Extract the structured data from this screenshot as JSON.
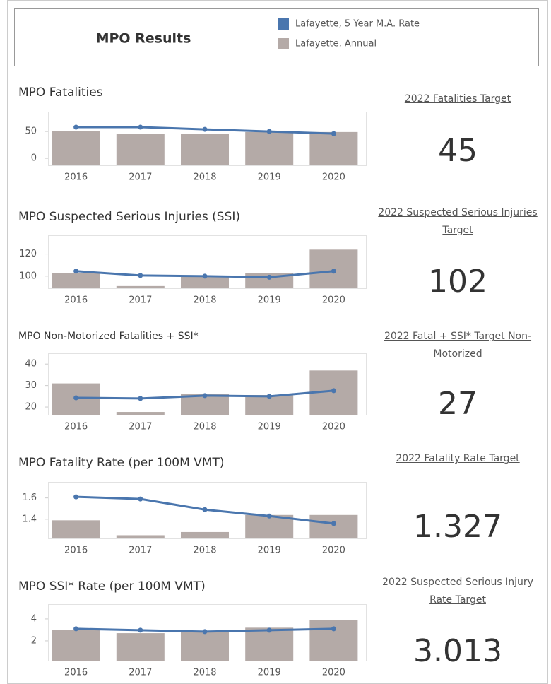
{
  "header": {
    "title": "MPO Results"
  },
  "legend": [
    {
      "name": "Lafayette, 5 Year M.A. Rate",
      "color": "#4a76ae"
    },
    {
      "name": "Lafayette, Annual",
      "color": "#b4aaa7"
    }
  ],
  "chart_data": [
    {
      "type": "combo",
      "title": "MPO Fatalities",
      "categories": [
        "2016",
        "2017",
        "2018",
        "2019",
        "2020"
      ],
      "series": [
        {
          "values": [
            51,
            45,
            46,
            49,
            49
          ]
        },
        {
          "values": [
            58,
            58,
            54,
            50,
            46
          ]
        }
      ],
      "ylim": [
        -13,
        87
      ],
      "yticks": [
        0,
        50
      ],
      "target_title": "2022 Fatalities Target",
      "target": 45
    },
    {
      "type": "combo",
      "title": "MPO Suspected Serious Injuries (SSI)",
      "categories": [
        "2016",
        "2017",
        "2018",
        "2019",
        "2020"
      ],
      "series": [
        {
          "values": [
            102.6,
            91,
            99.4,
            103,
            124
          ]
        },
        {
          "values": [
            104.5,
            100.6,
            100,
            99,
            104.5
          ]
        }
      ],
      "ylim": [
        89,
        137
      ],
      "yticks": [
        100,
        120
      ],
      "target_title": "2022 Suspected Serious Injuries Target",
      "target": 102
    },
    {
      "type": "combo",
      "title": "MPO Non-Motorized Fatalities + SSI*",
      "categories": [
        "2016",
        "2017",
        "2018",
        "2019",
        "2020"
      ],
      "series": [
        {
          "values": [
            31,
            17.7,
            26,
            25.6,
            37
          ]
        },
        {
          "values": [
            24.3,
            24,
            25.3,
            25,
            27.6
          ]
        }
      ],
      "ylim": [
        16.4,
        45
      ],
      "yticks": [
        20,
        30,
        40
      ],
      "target_title": "2022 Fatal + SSI* Target Non-Motorized",
      "target": 27
    },
    {
      "type": "combo",
      "title": "MPO Fatality Rate (per 100M VMT)",
      "categories": [
        "2016",
        "2017",
        "2018",
        "2019",
        "2020"
      ],
      "series": [
        {
          "values": [
            1.39,
            1.25,
            1.28,
            1.44,
            1.44
          ]
        },
        {
          "values": [
            1.61,
            1.59,
            1.49,
            1.43,
            1.36
          ]
        }
      ],
      "ylim": [
        1.22,
        1.75
      ],
      "yticks": [
        1.4,
        1.6
      ],
      "target_title": "2022 Fatality Rate Target",
      "target": 1.327
    },
    {
      "type": "combo",
      "title": "MPO SSI* Rate (per 100M VMT)",
      "categories": [
        "2016",
        "2017",
        "2018",
        "2019",
        "2020"
      ],
      "series": [
        {
          "values": [
            3.0,
            2.7,
            2.84,
            3.2,
            3.87
          ]
        },
        {
          "values": [
            3.1,
            2.97,
            2.84,
            2.97,
            3.1
          ]
        }
      ],
      "ylim": [
        0.19,
        5.35
      ],
      "yticks": [
        2,
        4
      ],
      "target_title": "2022 Suspected Serious Injury Rate Target",
      "target": 3.013
    }
  ]
}
